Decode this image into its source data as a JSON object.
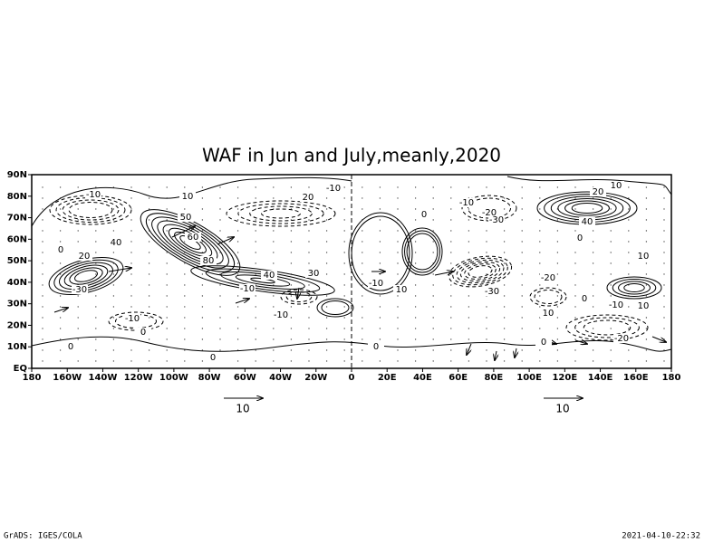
{
  "chart_data": {
    "type": "contour",
    "title": "WAF in Jun and July,meanly,2020",
    "xlim": [
      -180,
      180
    ],
    "xticks": [
      {
        "value": -180,
        "label": "180"
      },
      {
        "value": -160,
        "label": "160W"
      },
      {
        "value": -140,
        "label": "140W"
      },
      {
        "value": -120,
        "label": "120W"
      },
      {
        "value": -100,
        "label": "100W"
      },
      {
        "value": -80,
        "label": "80W"
      },
      {
        "value": -60,
        "label": "60W"
      },
      {
        "value": -40,
        "label": "40W"
      },
      {
        "value": -20,
        "label": "20W"
      },
      0,
      {
        "value": 20,
        "label": "20E"
      },
      {
        "value": 40,
        "label": "40E"
      },
      {
        "value": 60,
        "label": "60E"
      },
      {
        "value": 80,
        "label": "80E"
      },
      {
        "value": 100,
        "label": "100E"
      },
      {
        "value": 120,
        "label": "120E"
      },
      {
        "value": 140,
        "label": "140E"
      },
      {
        "value": 160,
        "label": "160E"
      },
      {
        "value": 180,
        "label": "180"
      }
    ],
    "ylim": [
      0,
      90
    ],
    "yticks": [
      {
        "value": 0,
        "label": "EQ"
      },
      {
        "value": 10,
        "label": "10N"
      },
      {
        "value": 20,
        "label": "20N"
      },
      {
        "value": 30,
        "label": "30N"
      },
      {
        "value": 40,
        "label": "40N"
      },
      {
        "value": 50,
        "label": "50N"
      },
      {
        "value": 60,
        "label": "60N"
      },
      {
        "value": 70,
        "label": "70N"
      },
      {
        "value": 80,
        "label": "80N"
      },
      {
        "value": 90,
        "label": "90N"
      }
    ],
    "contour_labels": [
      -10,
      10,
      20,
      -10,
      10,
      20,
      50,
      40,
      0,
      -10,
      -20,
      -30,
      0,
      0,
      20,
      40,
      60,
      80,
      40,
      30,
      10,
      -30,
      -20,
      -30,
      10,
      -10,
      -10,
      -10,
      0,
      -10,
      10,
      0,
      -10,
      10,
      -20,
      0,
      0,
      0,
      0
    ],
    "vector_scale_labels": [
      10,
      10
    ]
  },
  "footer": {
    "left": "GrADS: IGES/COLA",
    "right": "2021-04-10-22:32"
  }
}
